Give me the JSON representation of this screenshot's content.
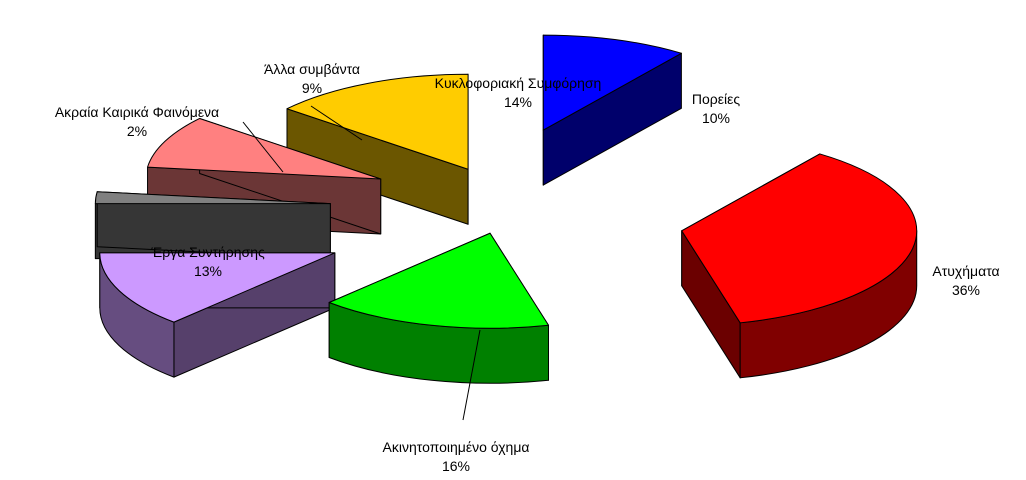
{
  "chart_data": {
    "type": "pie",
    "variant": "3d-exploded",
    "unit": "%",
    "slices": [
      {
        "label": "Πορείες",
        "value": 10,
        "color": "#0000FF"
      },
      {
        "label": "Ατυχήματα",
        "value": 36,
        "color": "#FF0000"
      },
      {
        "label": "Ακινητοποιημένο όχημα",
        "value": 16,
        "color": "#00FF00"
      },
      {
        "label": "Έργα Συντήρησης",
        "value": 13,
        "color": "#CC99FF"
      },
      {
        "label": "Ακραία Καιρικά Φαινόμενα",
        "value": 2,
        "color": "#808080"
      },
      {
        "label": "Άλλα συμβάντα",
        "value": 9,
        "color": "#FF8080"
      },
      {
        "label": "Κυκλοφοριακή Συμφόρηση",
        "value": 14,
        "color": "#FFCC00"
      }
    ],
    "value_labels": [
      "10%",
      "36%",
      "16%",
      "13%",
      "2%",
      "9%",
      "14%"
    ],
    "legend": false
  }
}
